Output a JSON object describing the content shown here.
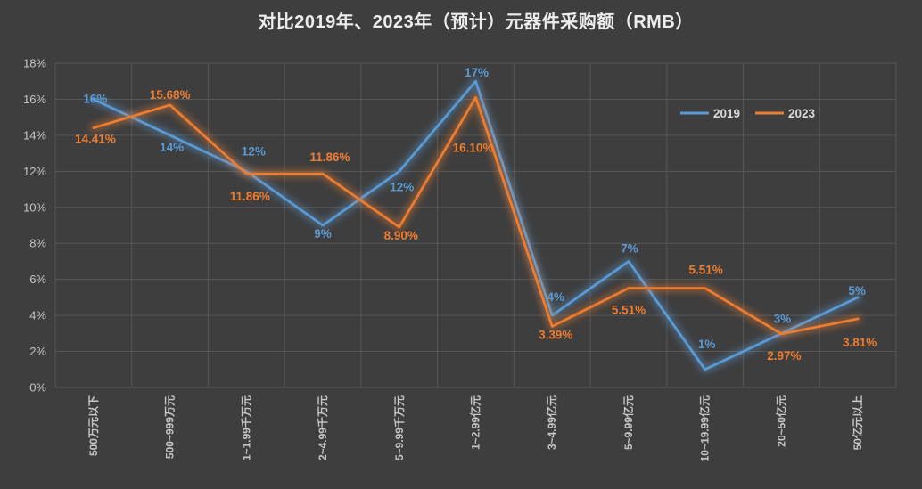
{
  "colors": {
    "background": "#3E3E3E",
    "gridline": "#575757",
    "axis_text": "#C6C6C6",
    "title_text": "#EDEDED",
    "legend_text": "#D9D9D9",
    "series_2019": "#5B9BD5",
    "series_2023": "#ED7D31"
  },
  "chart_data": {
    "type": "line",
    "title": "对比2019年、2023年（预计）元器件采购额（RMB）",
    "categories": [
      "500万元以下",
      "500~999万元",
      "1~1.99千万元",
      "2~4.99千万元",
      "5~9.99千万元",
      "1~2.99亿元",
      "3~4.99亿元",
      "5~9.99亿元",
      "10~19.99亿元",
      "20~50亿元",
      "50亿元以上"
    ],
    "series": [
      {
        "name": "2019",
        "color": "#5B9BD5",
        "values": [
          16,
          14,
          12,
          9,
          12,
          17,
          4,
          7,
          1,
          3,
          5
        ],
        "labels": [
          "16%",
          "14%",
          "12%",
          "9%",
          "12%",
          "17%",
          "4%",
          "7%",
          "1%",
          "3%",
          "5%"
        ]
      },
      {
        "name": "2023",
        "color": "#ED7D31",
        "values": [
          14.41,
          15.68,
          11.86,
          11.86,
          8.9,
          16.1,
          3.39,
          5.51,
          5.51,
          2.97,
          3.81
        ],
        "labels": [
          "14.41%",
          "15.68%",
          "11.86%",
          "11.86%",
          "8.90%",
          "16.10%",
          "3.39%",
          "5.51%",
          "5.51%",
          "2.97%",
          "3.81%"
        ]
      }
    ],
    "y_axis": {
      "min": 0,
      "max": 18,
      "step": 2,
      "tick_labels": [
        "0%",
        "2%",
        "4%",
        "6%",
        "8%",
        "10%",
        "12%",
        "14%",
        "16%",
        "18%"
      ]
    },
    "x_axis": {
      "label_rotation_degrees": -90
    },
    "legend": {
      "position": "top-right",
      "entries": [
        "2019",
        "2023"
      ]
    },
    "grid": true
  }
}
